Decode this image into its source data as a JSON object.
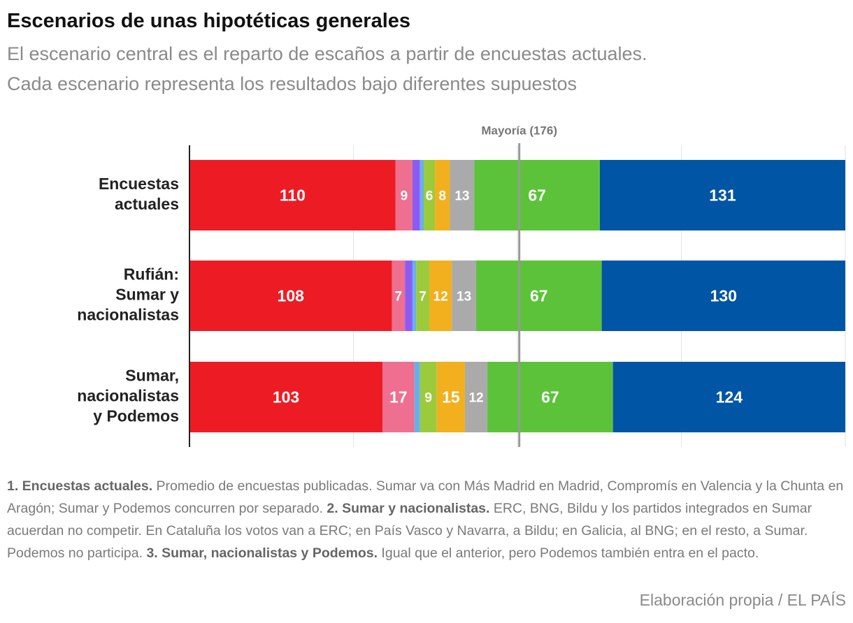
{
  "chart_data": {
    "type": "stacked-bar-horizontal",
    "title": "Escenarios de unas hipotéticas generales",
    "subtitle": [
      "El escenario central es el reparto de escaños a partir de encuestas actuales.",
      "Cada escenario representa los resultados bajo diferentes supuestos"
    ],
    "categories": [
      [
        "Encuestas",
        "actuales"
      ],
      [
        "Rufián:",
        "Sumar y",
        "nacionalistas"
      ],
      [
        "Sumar,",
        "nacionalistas",
        "y Podemos"
      ]
    ],
    "series": [
      {
        "color": "#ed1c24",
        "values": [
          110,
          108,
          103
        ]
      },
      {
        "color": "#ee6f8f",
        "values": [
          9,
          7,
          17
        ]
      },
      {
        "color": "#8a5cf5",
        "values": [
          4,
          4,
          null
        ]
      },
      {
        "color": "#6ab0e8",
        "values": [
          2,
          2,
          3
        ]
      },
      {
        "color": "#9bcb3c",
        "values": [
          6,
          7,
          9
        ]
      },
      {
        "color": "#f2b01e",
        "values": [
          8,
          12,
          15
        ]
      },
      {
        "color": "#aaaaaa",
        "values": [
          13,
          13,
          12
        ]
      },
      {
        "color": "#5cc23a",
        "values": [
          67,
          67,
          67
        ]
      },
      {
        "color": "#0055a4",
        "values": [
          131,
          130,
          124
        ]
      }
    ],
    "xlim": [
      0,
      350
    ],
    "xticks": [
      0,
      87.5,
      175,
      262.5,
      350
    ],
    "xtick_labels": false,
    "grid": true,
    "annotation": {
      "label": "Mayoría (176)",
      "value": 176
    },
    "notes": [
      {
        "bold": "1. Encuestas actuales.",
        "text": " Promedio de encuestas publicadas. Sumar va con Más Madrid en Madrid, Compromís en Valencia y la Chunta en Aragón; Sumar y Podemos concurren por separado. "
      },
      {
        "bold": "2. Sumar y nacionalistas.",
        "text": " ERC, BNG, Bildu y los partidos integrados en Sumar acuerdan no competir. En Cataluña los votos van a ERC; en País Vasco y Navarra, a Bildu; en Galicia, al BNG; en el resto, a Sumar. Podemos no participa. "
      },
      {
        "bold": "3. Sumar, nacionalistas y Podemos.",
        "text": " Igual que el anterior, pero Podemos también entra en el pacto."
      }
    ],
    "source": "Elaboración propia / EL PAÍS"
  }
}
